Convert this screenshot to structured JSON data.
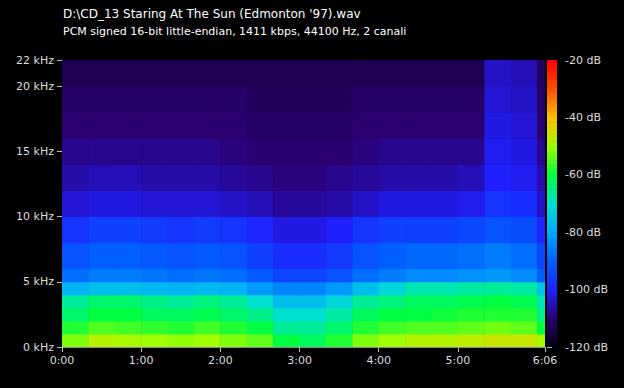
{
  "chart_data": {
    "type": "heatmap",
    "title": "D:\\CD_13 Staring At The Sun (Edmonton '97).wav",
    "subtitle": "PCM signed 16-bit little-endian, 1411 kbps, 44100 Hz, 2 canali",
    "x_bins": [
      0,
      20,
      40,
      60,
      80,
      100,
      120,
      140,
      160,
      180,
      200,
      220,
      240,
      260,
      280,
      300,
      320,
      340,
      360,
      366
    ],
    "y_bins": [
      0,
      1,
      2,
      3,
      4,
      5,
      6,
      8,
      10,
      12,
      14,
      16,
      18,
      20,
      22
    ],
    "values": [
      [
        -52,
        -48,
        -49,
        -50,
        -51,
        -50,
        -52,
        -54,
        -60,
        -62,
        -58,
        -52,
        -50,
        -48,
        -48,
        -47,
        -46,
        -46,
        -50
      ],
      [
        -58,
        -55,
        -56,
        -57,
        -58,
        -56,
        -58,
        -60,
        -66,
        -66,
        -63,
        -58,
        -56,
        -55,
        -55,
        -54,
        -53,
        -54,
        -60
      ],
      [
        -63,
        -60,
        -60,
        -62,
        -62,
        -61,
        -63,
        -65,
        -70,
        -70,
        -67,
        -62,
        -60,
        -60,
        -59,
        -58,
        -58,
        -58,
        -65
      ],
      [
        -66,
        -63,
        -63,
        -65,
        -66,
        -64,
        -66,
        -70,
        -76,
        -76,
        -72,
        -66,
        -64,
        -62,
        -62,
        -61,
        -60,
        -61,
        -68
      ],
      [
        -78,
        -76,
        -76,
        -77,
        -78,
        -77,
        -78,
        -82,
        -85,
        -85,
        -82,
        -76,
        -72,
        -68,
        -68,
        -67,
        -66,
        -67,
        -75
      ],
      [
        -88,
        -86,
        -86,
        -87,
        -88,
        -87,
        -88,
        -91,
        -94,
        -94,
        -92,
        -88,
        -86,
        -84,
        -84,
        -83,
        -82,
        -84,
        -90
      ],
      [
        -92,
        -90,
        -90,
        -91,
        -92,
        -91,
        -92,
        -95,
        -98,
        -98,
        -96,
        -92,
        -90,
        -89,
        -89,
        -88,
        -86,
        -88,
        -94
      ],
      [
        -97,
        -95,
        -95,
        -96,
        -97,
        -96,
        -97,
        -99,
        -102,
        -102,
        -100,
        -97,
        -95,
        -95,
        -95,
        -94,
        -92,
        -93,
        -99
      ],
      [
        -103,
        -102,
        -102,
        -103,
        -103,
        -103,
        -104,
        -105,
        -107,
        -107,
        -106,
        -104,
        -102,
        -102,
        -102,
        -101,
        -97,
        -98,
        -104
      ],
      [
        -106,
        -105,
        -105,
        -106,
        -106,
        -106,
        -107,
        -108,
        -109,
        -109,
        -108,
        -107,
        -106,
        -106,
        -106,
        -105,
        -100,
        -101,
        -106
      ],
      [
        -108,
        -108,
        -108,
        -108,
        -108,
        -108,
        -109,
        -110,
        -110,
        -110,
        -110,
        -109,
        -108,
        -108,
        -108,
        -108,
        -101,
        -102,
        -108
      ],
      [
        -110,
        -110,
        -110,
        -110,
        -110,
        -110,
        -110,
        -111,
        -111,
        -111,
        -111,
        -110,
        -110,
        -110,
        -110,
        -110,
        -102,
        -103,
        -110
      ],
      [
        -111,
        -111,
        -111,
        -111,
        -111,
        -111,
        -111,
        -112,
        -112,
        -112,
        -112,
        -111,
        -111,
        -111,
        -111,
        -111,
        -103,
        -104,
        -111
      ],
      [
        -113,
        -113,
        -113,
        -113,
        -113,
        -113,
        -113,
        -113,
        -113,
        -113,
        -113,
        -113,
        -113,
        -113,
        -113,
        -113,
        -104,
        -105,
        -112
      ]
    ],
    "xlim": [
      0,
      366
    ],
    "xticks": [
      {
        "value": 0,
        "label": "0:00"
      },
      {
        "value": 60,
        "label": "1:00"
      },
      {
        "value": 120,
        "label": "2:00"
      },
      {
        "value": 180,
        "label": "3:00"
      },
      {
        "value": 240,
        "label": "4:00"
      },
      {
        "value": 300,
        "label": "5:00"
      },
      {
        "value": 366,
        "label": "6:06"
      }
    ],
    "ylim": [
      0,
      22
    ],
    "yticks": [
      {
        "value": 0,
        "label": "0 kHz"
      },
      {
        "value": 5,
        "label": "5 kHz"
      },
      {
        "value": 10,
        "label": "10 kHz"
      },
      {
        "value": 15,
        "label": "15 kHz"
      },
      {
        "value": 20,
        "label": "20 kHz"
      },
      {
        "value": 22,
        "label": "22 kHz"
      }
    ],
    "color_range": [
      -120,
      -20
    ],
    "color_ticks": [
      {
        "value": -120,
        "label": "-120 dB"
      },
      {
        "value": -100,
        "label": "-100 dB"
      },
      {
        "value": -80,
        "label": "-80 dB"
      },
      {
        "value": -60,
        "label": "-60 dB"
      },
      {
        "value": -40,
        "label": "-40 dB"
      },
      {
        "value": -20,
        "label": "-20 dB"
      }
    ]
  }
}
